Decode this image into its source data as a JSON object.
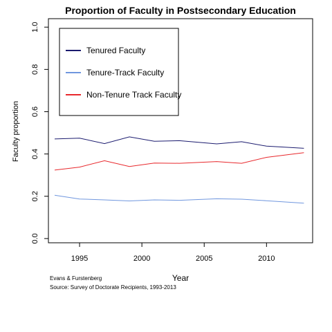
{
  "chart_data": {
    "type": "line",
    "title": "Proportion of Faculty in Postsecondary Education",
    "xlabel": "Year",
    "ylabel": "Faculty proportion",
    "xlim": [
      1992.5,
      2013.7
    ],
    "ylim": [
      -0.02,
      1.04
    ],
    "xticks": [
      1995,
      2000,
      2005,
      2010
    ],
    "yticks": [
      0.0,
      0.2,
      0.4,
      0.6,
      0.8,
      1.0
    ],
    "ytick_labels": [
      "0.0",
      "0.2",
      "0.4",
      "0.6",
      "0.8",
      "1.0"
    ],
    "grid": false,
    "legend_position": "top-left",
    "x": [
      1993,
      1995,
      1997,
      1999,
      2001,
      2003,
      2006,
      2008,
      2010,
      2013
    ],
    "series": [
      {
        "name": "Tenured Faculty",
        "color": "#1a1a6e",
        "values": [
          0.471,
          0.475,
          0.449,
          0.481,
          0.46,
          0.463,
          0.448,
          0.458,
          0.437,
          0.427
        ]
      },
      {
        "name": "Tenure-Track Faculty",
        "color": "#6f96de",
        "values": [
          0.205,
          0.187,
          0.183,
          0.178,
          0.183,
          0.181,
          0.188,
          0.186,
          0.179,
          0.167
        ]
      },
      {
        "name": "Non-Tenure Track Faculty",
        "color": "#e8272b",
        "values": [
          0.324,
          0.338,
          0.368,
          0.341,
          0.357,
          0.356,
          0.364,
          0.356,
          0.384,
          0.406
        ]
      }
    ]
  },
  "captions": {
    "author": "Evans & Furstenberg",
    "source": "Source: Survey of Doctorate Recipients, 1993-2013"
  }
}
